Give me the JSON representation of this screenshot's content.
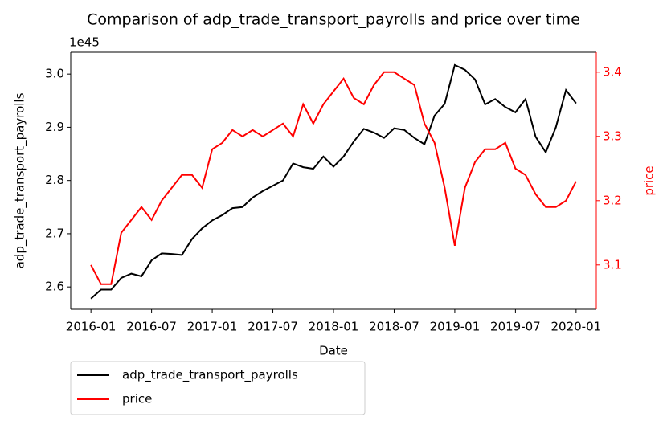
{
  "chart_data": {
    "type": "line",
    "title": "Comparison of adp_trade_transport_payrolls and price over time",
    "xlabel": "Date",
    "ylabel": "adp_trade_transport_payrolls",
    "y2label": "price",
    "y_offset_label": "1e45",
    "x": [
      "2016-01",
      "2016-02",
      "2016-03",
      "2016-04",
      "2016-05",
      "2016-06",
      "2016-07",
      "2016-08",
      "2016-09",
      "2016-10",
      "2016-11",
      "2016-12",
      "2017-01",
      "2017-02",
      "2017-03",
      "2017-04",
      "2017-05",
      "2017-06",
      "2017-07",
      "2017-08",
      "2017-09",
      "2017-10",
      "2017-11",
      "2017-12",
      "2018-01",
      "2018-02",
      "2018-03",
      "2018-04",
      "2018-05",
      "2018-06",
      "2018-07",
      "2018-08",
      "2018-09",
      "2018-10",
      "2018-11",
      "2018-12",
      "2019-01",
      "2019-02",
      "2019-03",
      "2019-04",
      "2019-05",
      "2019-06",
      "2019-07",
      "2019-08",
      "2019-09",
      "2019-10",
      "2019-11",
      "2019-12",
      "2020-01"
    ],
    "series": [
      {
        "name": "adp_trade_transport_payrolls",
        "color": "#000000",
        "axis": "y",
        "values": [
          2.578,
          2.595,
          2.595,
          2.617,
          2.625,
          2.62,
          2.65,
          2.663,
          2.662,
          2.66,
          2.69,
          2.71,
          2.725,
          2.735,
          2.748,
          2.75,
          2.768,
          2.78,
          2.79,
          2.8,
          2.832,
          2.825,
          2.822,
          2.845,
          2.826,
          2.845,
          2.873,
          2.897,
          2.89,
          2.88,
          2.898,
          2.895,
          2.88,
          2.868,
          2.922,
          2.944,
          3.017,
          3.008,
          2.99,
          2.943,
          2.953,
          2.938,
          2.928,
          2.953,
          2.882,
          2.853,
          2.9,
          2.97,
          2.945
        ]
      },
      {
        "name": "price",
        "color": "#ff0000",
        "axis": "y2",
        "values": [
          3.1,
          3.07,
          3.07,
          3.15,
          3.17,
          3.19,
          3.17,
          3.2,
          3.22,
          3.24,
          3.24,
          3.22,
          3.28,
          3.29,
          3.31,
          3.3,
          3.31,
          3.3,
          3.31,
          3.32,
          3.3,
          3.35,
          3.32,
          3.35,
          3.37,
          3.39,
          3.36,
          3.35,
          3.38,
          3.4,
          3.4,
          3.39,
          3.38,
          3.32,
          3.29,
          3.22,
          3.13,
          3.22,
          3.26,
          3.28,
          3.28,
          3.29,
          3.25,
          3.24,
          3.21,
          3.19,
          3.19,
          3.2,
          3.23
        ]
      }
    ],
    "xlim": [
      "2015-11",
      "2020-03"
    ],
    "xticks": [
      "2016-01",
      "2016-07",
      "2017-01",
      "2017-07",
      "2018-01",
      "2018-07",
      "2019-01",
      "2019-07",
      "2020-01"
    ],
    "ylim": [
      2.558,
      3.041
    ],
    "yticks": [
      2.6,
      2.7,
      2.8,
      2.9,
      {
        "value": 3.0,
        "label": "3.0"
      }
    ],
    "y2lim": [
      3.031,
      3.431
    ],
    "y2ticks": [
      3.1,
      3.2,
      3.3,
      3.4
    ],
    "y2color": "#ff0000",
    "legend": "below"
  }
}
